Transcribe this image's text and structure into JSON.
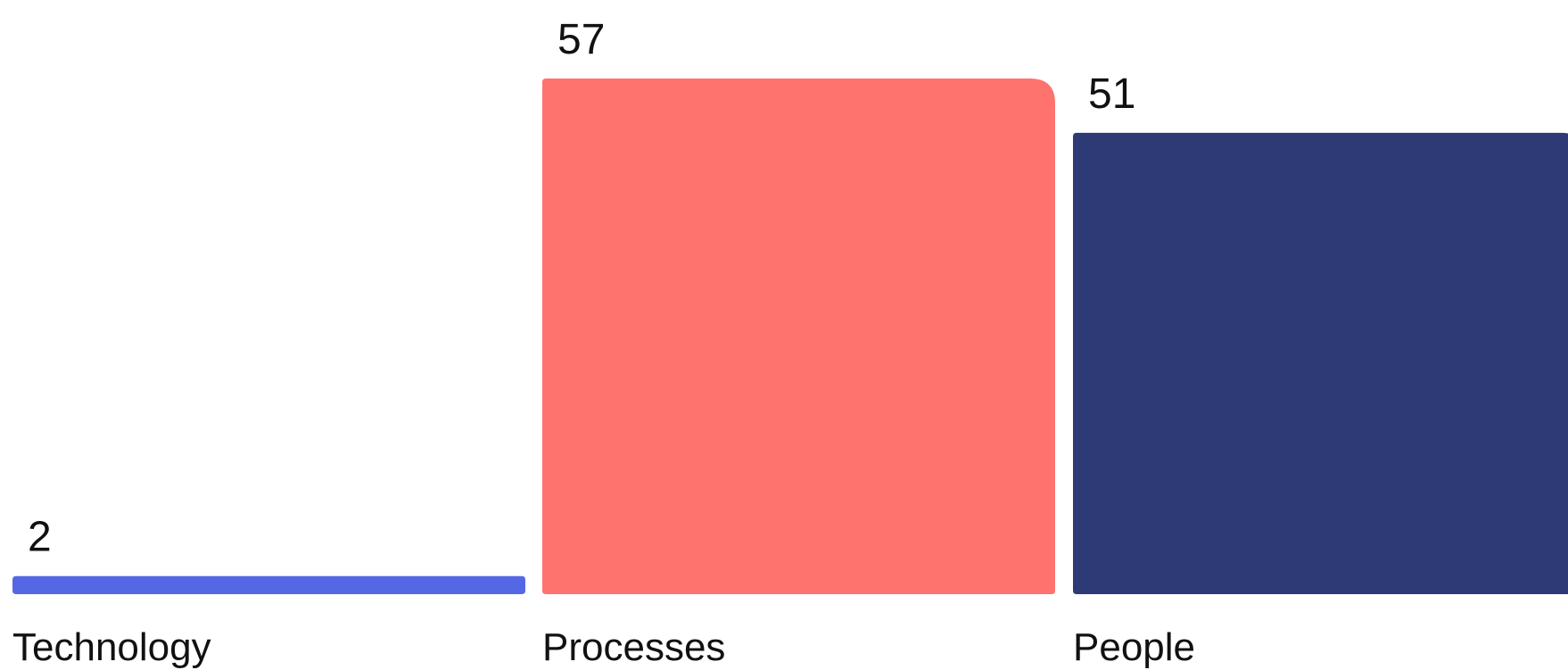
{
  "chart_data": {
    "type": "bar",
    "categories": [
      "Technology",
      "Processes",
      "People"
    ],
    "values": [
      2,
      57,
      51
    ],
    "colors": [
      "#5468e6",
      "#ff736e",
      "#2d3a76"
    ],
    "title": "",
    "xlabel": "",
    "ylabel": "",
    "ylim": [
      0,
      57
    ],
    "grid": false,
    "legend": "none"
  }
}
